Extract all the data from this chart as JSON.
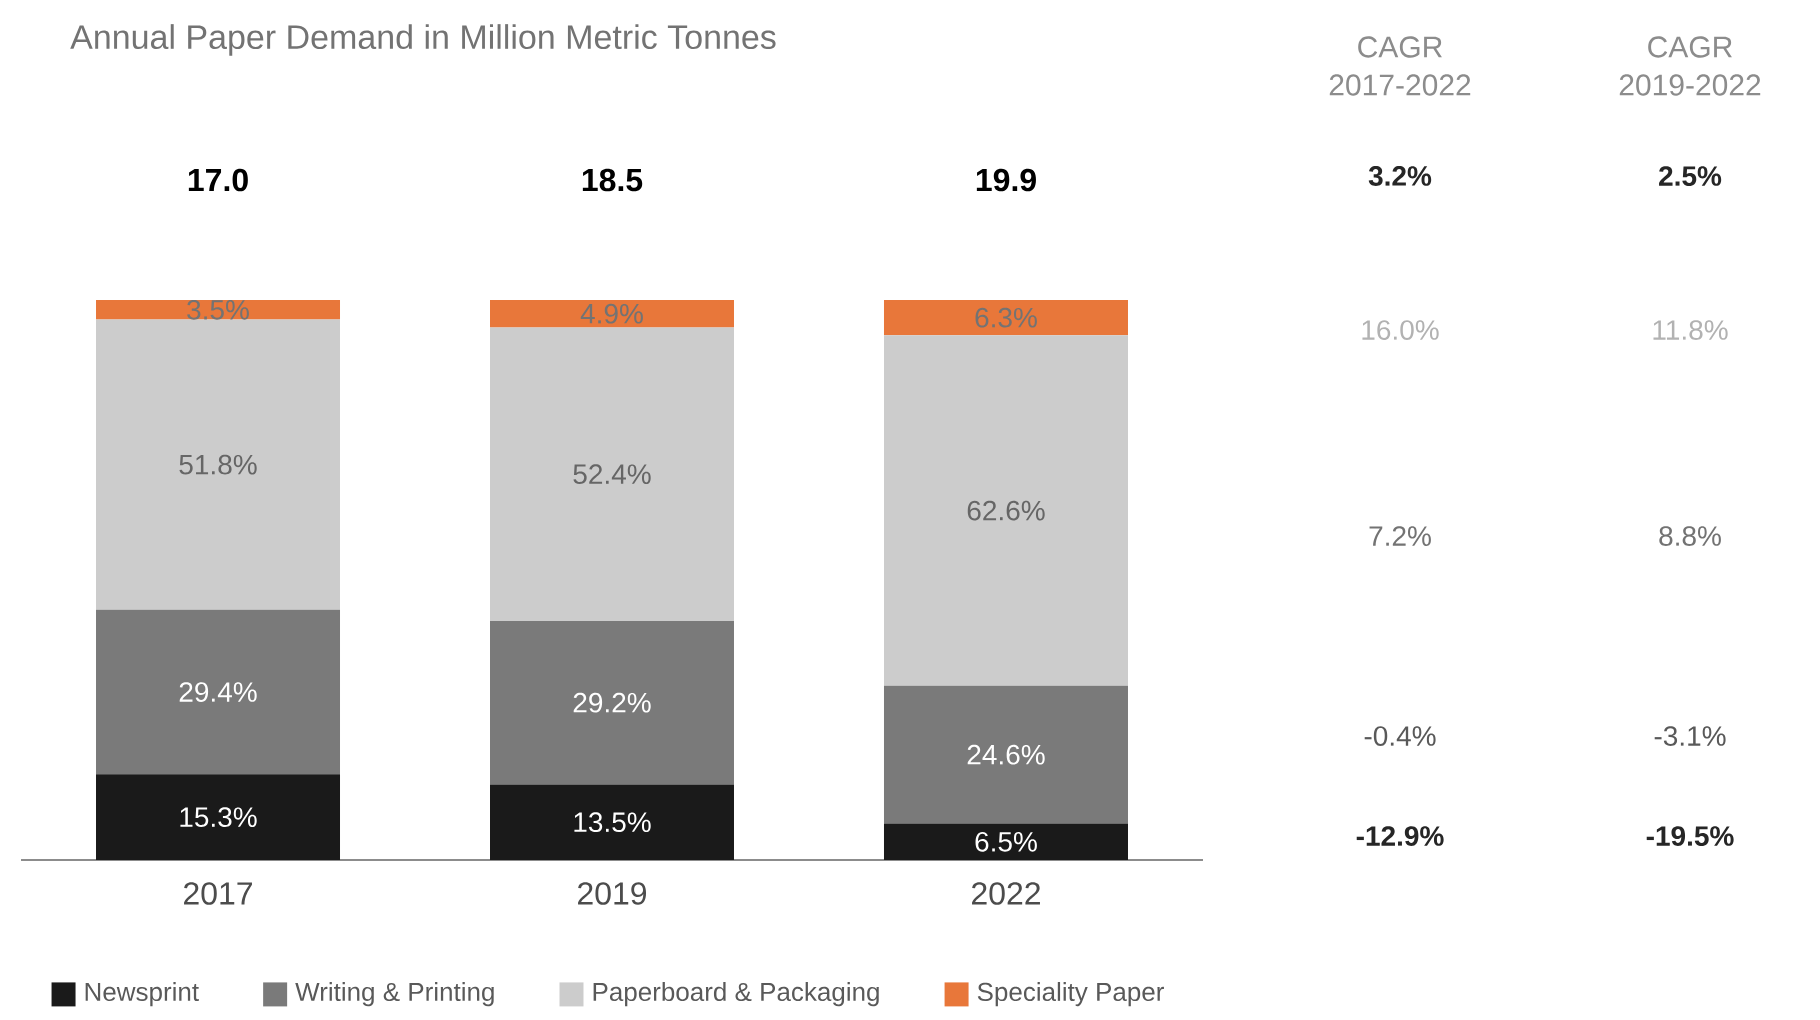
{
  "chart_data": {
    "type": "bar",
    "stacked": true,
    "title": "Annual Paper Demand in Million Metric Tonnes",
    "categories": [
      "2017",
      "2019",
      "2022"
    ],
    "series": [
      {
        "name": "Newsprint",
        "color": "#1a1a1a",
        "values": [
          15.3,
          13.5,
          6.5
        ],
        "value_labels": [
          "15.3%",
          "13.5%",
          "6.5%"
        ]
      },
      {
        "name": "Writing & Printing",
        "color": "#7a7a7a",
        "values": [
          29.4,
          29.2,
          24.6
        ],
        "value_labels": [
          "29.4%",
          "29.2%",
          "24.6%"
        ]
      },
      {
        "name": "Paperboard & Packaging",
        "color": "#cccccc",
        "values": [
          51.8,
          52.4,
          62.6
        ],
        "value_labels": [
          "51.8%",
          "52.4%",
          "62.6%"
        ]
      },
      {
        "name": "Speciality Paper",
        "color": "#e8773a",
        "values": [
          3.5,
          4.9,
          6.3
        ],
        "value_labels": [
          "3.5%",
          "4.9%",
          "6.3%"
        ]
      }
    ],
    "legend": "bottom",
    "annotations": [
      "17.0",
      "18.5",
      "19.9",
      "CAGR 2017-2022",
      "CAGR 2019-2022",
      "3.2%",
      "2.5%",
      "16.0%",
      "11.8%",
      "7.2%",
      "8.8%",
      "-0.4%",
      "-3.1%",
      "-12.9%",
      "-19.5%"
    ]
  }
}
